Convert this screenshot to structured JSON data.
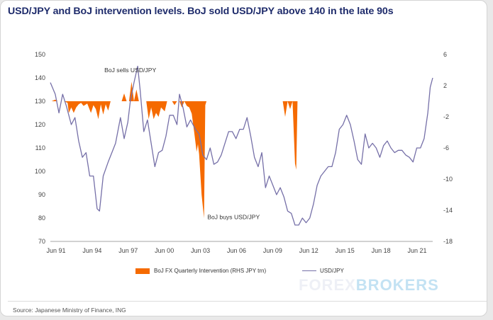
{
  "title": "USD/JPY and BoJ intervention levels. BoJ sold USD/JPY above 140 in the late 90s",
  "source": "Source: Japanese Ministry of Finance, ING",
  "watermark": {
    "left": "FOREX",
    "right": "BROKERS"
  },
  "colors": {
    "intervention": "#f56a00",
    "usdjpy": "#7670a8",
    "title": "#1e2b6b",
    "axis_text": "#444444"
  },
  "chart_data": {
    "type": "line",
    "title": "USD/JPY and BoJ intervention levels. BoJ sold USD/JPY above 140 in the late 90s",
    "legend": [
      "BoJ FX Quarterly Intervention (RHS JPY trn)",
      "USD/JPY"
    ],
    "legend_position": "bottom",
    "grid": false,
    "x_tick_labels": [
      "Jun 91",
      "Jun 94",
      "Jun 97",
      "Jun 00",
      "Jun 03",
      "Jun 06",
      "Jun 09",
      "Jun 12",
      "Jun 15",
      "Jun 18",
      "Jun 21"
    ],
    "x_range": [
      1991.5,
      2022.6
    ],
    "y_left": {
      "min": 70,
      "max": 150,
      "ticks": [
        70,
        80,
        90,
        100,
        110,
        120,
        130,
        140,
        150
      ]
    },
    "y_right": {
      "min": -18,
      "max": 6,
      "ticks": [
        -18,
        -14,
        -10,
        -6,
        -2,
        2,
        6
      ]
    },
    "annotations": [
      {
        "text": "BoJ sells USD/JPY",
        "x": 1998.0,
        "y": 142.5
      },
      {
        "text": "BoJ buys USD/JPY",
        "x": 2006.4,
        "y": 79.5
      }
    ],
    "series": [
      {
        "name": "BoJ FX Quarterly Intervention (RHS JPY trn)",
        "type": "area",
        "axis": "right",
        "points": [
          [
            1991.6,
            0
          ],
          [
            1991.9,
            0.2
          ],
          [
            1992.1,
            0
          ],
          [
            1992.6,
            0
          ],
          [
            1992.9,
            -0.2
          ],
          [
            1993.0,
            -1.5
          ],
          [
            1993.2,
            -0.8
          ],
          [
            1993.4,
            -1.5
          ],
          [
            1993.6,
            -0.8
          ],
          [
            1993.8,
            -0.4
          ],
          [
            1994.0,
            -0.2
          ],
          [
            1994.2,
            -0.6
          ],
          [
            1994.5,
            -0.3
          ],
          [
            1994.8,
            -1.5
          ],
          [
            1995.0,
            -0.5
          ],
          [
            1995.2,
            -1.0
          ],
          [
            1995.4,
            -2.3
          ],
          [
            1995.6,
            -0.4
          ],
          [
            1995.8,
            -1.7
          ],
          [
            1996.0,
            -0.4
          ],
          [
            1996.2,
            -1.2
          ],
          [
            1996.4,
            0
          ],
          [
            1997.0,
            0
          ],
          [
            1997.3,
            0
          ],
          [
            1997.5,
            1.0
          ],
          [
            1997.7,
            0
          ],
          [
            1997.9,
            0
          ],
          [
            1998.1,
            2.5
          ],
          [
            1998.3,
            0
          ],
          [
            1998.5,
            1.5
          ],
          [
            1998.7,
            0
          ],
          [
            1999.3,
            0
          ],
          [
            1999.5,
            -2.3
          ],
          [
            1999.7,
            -0.8
          ],
          [
            1999.9,
            -2.3
          ],
          [
            2000.1,
            -1.5
          ],
          [
            2000.3,
            -2.0
          ],
          [
            2000.5,
            -0.8
          ],
          [
            2000.8,
            -1.3
          ],
          [
            2001.0,
            0
          ],
          [
            2001.4,
            0
          ],
          [
            2001.6,
            -0.5
          ],
          [
            2001.8,
            0
          ],
          [
            2002.0,
            0
          ],
          [
            2002.2,
            -0.8
          ],
          [
            2002.4,
            0
          ],
          [
            2002.6,
            -0.6
          ],
          [
            2002.8,
            -0.8
          ],
          [
            2003.0,
            -1.6
          ],
          [
            2003.2,
            -4.0
          ],
          [
            2003.4,
            -6.5
          ],
          [
            2003.5,
            -5.5
          ],
          [
            2003.6,
            -6.8
          ],
          [
            2003.8,
            -12.0
          ],
          [
            2004.0,
            -15.0
          ],
          [
            2004.1,
            -0.5
          ],
          [
            2004.2,
            0
          ],
          [
            2010.0,
            0
          ],
          [
            2010.4,
            0
          ],
          [
            2010.6,
            -2.0
          ],
          [
            2010.8,
            0
          ],
          [
            2011.0,
            -1.0
          ],
          [
            2011.2,
            0
          ],
          [
            2011.4,
            -8.0
          ],
          [
            2011.5,
            -8.8
          ],
          [
            2011.6,
            0
          ],
          [
            2011.8,
            0
          ]
        ]
      },
      {
        "name": "USD/JPY",
        "type": "line",
        "axis": "left",
        "points": [
          [
            1991.5,
            138
          ],
          [
            1991.9,
            133
          ],
          [
            1992.2,
            125
          ],
          [
            1992.5,
            133
          ],
          [
            1992.8,
            128
          ],
          [
            1993.2,
            120
          ],
          [
            1993.5,
            123
          ],
          [
            1993.8,
            113
          ],
          [
            1994.1,
            106
          ],
          [
            1994.4,
            108
          ],
          [
            1994.7,
            98
          ],
          [
            1995.0,
            98
          ],
          [
            1995.3,
            84
          ],
          [
            1995.5,
            83
          ],
          [
            1995.8,
            98
          ],
          [
            1996.2,
            104
          ],
          [
            1996.5,
            108
          ],
          [
            1996.8,
            112
          ],
          [
            1997.2,
            123
          ],
          [
            1997.5,
            114
          ],
          [
            1997.8,
            121
          ],
          [
            1998.0,
            130
          ],
          [
            1998.3,
            138
          ],
          [
            1998.6,
            145
          ],
          [
            1998.8,
            135
          ],
          [
            1999.1,
            117
          ],
          [
            1999.4,
            122
          ],
          [
            1999.7,
            112
          ],
          [
            2000.0,
            102
          ],
          [
            2000.3,
            108
          ],
          [
            2000.6,
            109
          ],
          [
            2000.9,
            115
          ],
          [
            2001.2,
            124
          ],
          [
            2001.5,
            124
          ],
          [
            2001.8,
            120
          ],
          [
            2002.0,
            133
          ],
          [
            2002.3,
            127
          ],
          [
            2002.6,
            119
          ],
          [
            2002.9,
            122
          ],
          [
            2003.3,
            118
          ],
          [
            2003.6,
            116
          ],
          [
            2003.9,
            107
          ],
          [
            2004.2,
            105
          ],
          [
            2004.5,
            110
          ],
          [
            2004.8,
            103
          ],
          [
            2005.1,
            104
          ],
          [
            2005.4,
            107
          ],
          [
            2005.7,
            112
          ],
          [
            2006.0,
            117
          ],
          [
            2006.3,
            117
          ],
          [
            2006.6,
            114
          ],
          [
            2006.9,
            118
          ],
          [
            2007.2,
            118
          ],
          [
            2007.5,
            123
          ],
          [
            2007.8,
            115
          ],
          [
            2008.1,
            106
          ],
          [
            2008.4,
            102
          ],
          [
            2008.7,
            108
          ],
          [
            2009.0,
            93
          ],
          [
            2009.3,
            98
          ],
          [
            2009.6,
            94
          ],
          [
            2009.9,
            90
          ],
          [
            2010.2,
            93
          ],
          [
            2010.5,
            89
          ],
          [
            2010.8,
            83
          ],
          [
            2011.1,
            82
          ],
          [
            2011.4,
            77
          ],
          [
            2011.7,
            77
          ],
          [
            2012.0,
            80
          ],
          [
            2012.3,
            78
          ],
          [
            2012.6,
            80
          ],
          [
            2012.9,
            86
          ],
          [
            2013.2,
            94
          ],
          [
            2013.5,
            98
          ],
          [
            2013.8,
            100
          ],
          [
            2014.1,
            102
          ],
          [
            2014.4,
            102
          ],
          [
            2014.7,
            108
          ],
          [
            2015.0,
            118
          ],
          [
            2015.3,
            120
          ],
          [
            2015.6,
            124
          ],
          [
            2015.9,
            120
          ],
          [
            2016.2,
            113
          ],
          [
            2016.5,
            105
          ],
          [
            2016.8,
            103
          ],
          [
            2017.1,
            116
          ],
          [
            2017.4,
            110
          ],
          [
            2017.7,
            112
          ],
          [
            2018.0,
            110
          ],
          [
            2018.3,
            106
          ],
          [
            2018.6,
            111
          ],
          [
            2018.9,
            113
          ],
          [
            2019.2,
            110
          ],
          [
            2019.5,
            108
          ],
          [
            2019.8,
            109
          ],
          [
            2020.1,
            109
          ],
          [
            2020.4,
            107
          ],
          [
            2020.7,
            106
          ],
          [
            2021.0,
            104
          ],
          [
            2021.3,
            110
          ],
          [
            2021.6,
            110
          ],
          [
            2021.9,
            114
          ],
          [
            2022.2,
            125
          ],
          [
            2022.4,
            136
          ],
          [
            2022.6,
            140
          ]
        ]
      }
    ]
  }
}
